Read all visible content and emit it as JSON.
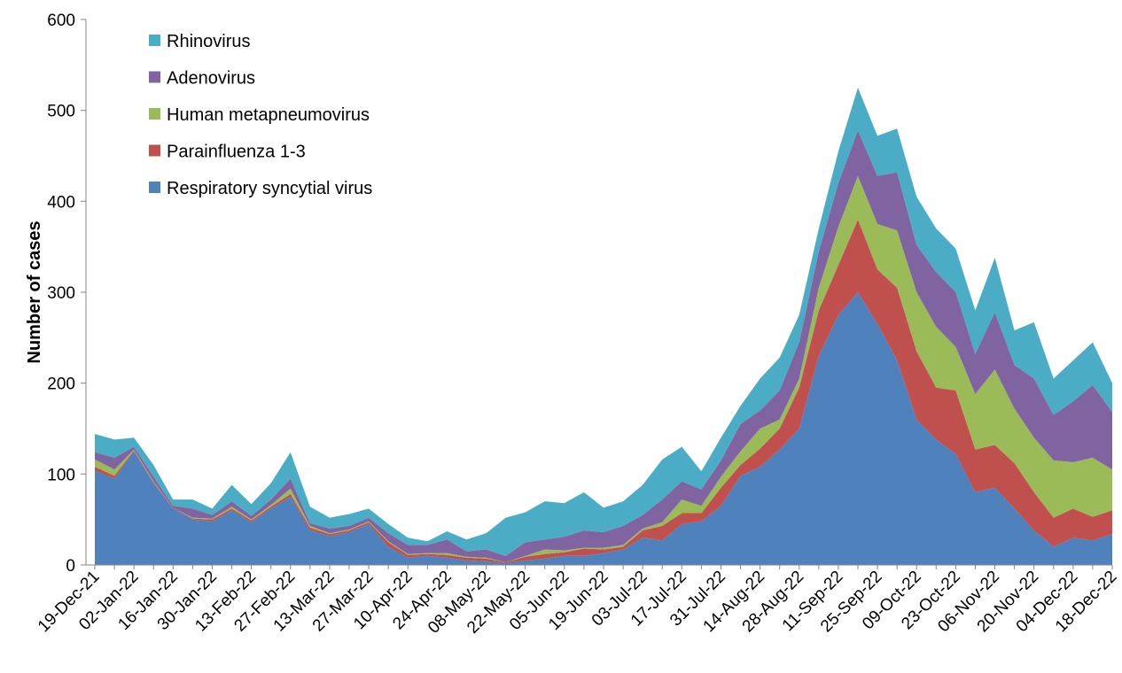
{
  "chart_data": {
    "type": "stacked_area",
    "y_label": "Number of cases",
    "categories": [
      "19-Dec-21",
      null,
      "02-Jan-22",
      null,
      "16-Jan-22",
      null,
      "30-Jan-22",
      null,
      "13-Feb-22",
      null,
      "27-Feb-22",
      null,
      "13-Mar-22",
      null,
      "27-Mar-22",
      null,
      "10-Apr-22",
      null,
      "24-Apr-22",
      null,
      "08-May-22",
      null,
      "22-May-22",
      null,
      "05-Jun-22",
      null,
      "19-Jun-22",
      null,
      "03-Jul-22",
      null,
      "17-Jul-22",
      null,
      "31-Jul-22",
      null,
      "14-Aug-22",
      null,
      "28-Aug-22",
      null,
      "11-Sep-22",
      null,
      "25-Sep-22",
      null,
      "09-Oct-22",
      null,
      "23-Oct-22",
      null,
      "06-Nov-22",
      null,
      "20-Nov-22",
      null,
      "04-Dec-22",
      null,
      "18-Dec-22"
    ],
    "series": [
      {
        "name": "Respiratory syncytial virus",
        "color": "#4f81bd",
        "values": [
          104,
          95,
          125,
          90,
          62,
          50,
          48,
          60,
          47,
          62,
          75,
          38,
          32,
          36,
          45,
          20,
          8,
          10,
          8,
          5,
          4,
          2,
          5,
          7,
          10,
          10,
          13,
          17,
          30,
          27,
          45,
          48,
          65,
          98,
          108,
          127,
          150,
          230,
          275,
          300,
          265,
          225,
          160,
          138,
          122,
          80,
          85,
          62,
          38,
          20,
          30,
          27,
          34
        ]
      },
      {
        "name": "Parainfluenza 1-3",
        "color": "#c0504d",
        "values": [
          4,
          3,
          1,
          1,
          1,
          1,
          2,
          2,
          2,
          2,
          3,
          3,
          2,
          2,
          2,
          5,
          3,
          2,
          3,
          3,
          3,
          1,
          4,
          5,
          4,
          8,
          4,
          3,
          8,
          16,
          12,
          9,
          20,
          12,
          20,
          23,
          45,
          50,
          55,
          80,
          60,
          80,
          75,
          57,
          70,
          47,
          47,
          50,
          42,
          32,
          32,
          26,
          26
        ]
      },
      {
        "name": "Human metapneumovirus",
        "color": "#9bbb59",
        "values": [
          8,
          7,
          1,
          1,
          0,
          1,
          1,
          2,
          1,
          2,
          6,
          2,
          1,
          1,
          1,
          1,
          1,
          1,
          2,
          1,
          1,
          0,
          1,
          5,
          2,
          1,
          2,
          2,
          2,
          4,
          15,
          8,
          12,
          15,
          22,
          10,
          10,
          25,
          42,
          48,
          50,
          63,
          65,
          67,
          48,
          61,
          83,
          60,
          60,
          63,
          51,
          65,
          45
        ]
      },
      {
        "name": "Adenovirus",
        "color": "#8064a2",
        "values": [
          8,
          13,
          3,
          5,
          2,
          10,
          4,
          6,
          4,
          6,
          11,
          3,
          5,
          4,
          4,
          9,
          10,
          9,
          15,
          6,
          9,
          7,
          15,
          11,
          15,
          19,
          17,
          21,
          15,
          25,
          20,
          18,
          18,
          30,
          20,
          32,
          40,
          40,
          48,
          50,
          53,
          64,
          52,
          60,
          60,
          44,
          63,
          48,
          65,
          50,
          67,
          80,
          63
        ]
      },
      {
        "name": "Rhinovirus",
        "color": "#4bacc6",
        "values": [
          20,
          20,
          10,
          13,
          7,
          10,
          7,
          18,
          13,
          18,
          29,
          18,
          12,
          13,
          10,
          10,
          8,
          4,
          9,
          13,
          18,
          42,
          33,
          42,
          37,
          42,
          27,
          27,
          33,
          44,
          38,
          20,
          25,
          20,
          35,
          36,
          30,
          25,
          35,
          47,
          44,
          48,
          53,
          48,
          48,
          48,
          60,
          38,
          62,
          40,
          45,
          47,
          32
        ]
      }
    ],
    "ylim": [
      0,
      600
    ],
    "yticks": [
      0,
      100,
      200,
      300,
      400,
      500,
      600
    ],
    "grid": false,
    "legend": "top-left"
  }
}
